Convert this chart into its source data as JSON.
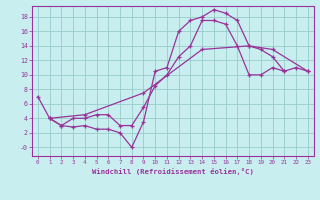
{
  "xlabel": "Windchill (Refroidissement éolien,°C)",
  "bg_color": "#c8eef0",
  "line_color": "#993399",
  "grid_color": "#99cccc",
  "xlim": [
    -0.5,
    23.5
  ],
  "ylim": [
    -1.2,
    19.5
  ],
  "xticks": [
    0,
    1,
    2,
    3,
    4,
    5,
    6,
    7,
    8,
    9,
    10,
    11,
    12,
    13,
    14,
    15,
    16,
    17,
    18,
    19,
    20,
    21,
    22,
    23
  ],
  "yticks": [
    0,
    2,
    4,
    6,
    8,
    10,
    12,
    14,
    16,
    18
  ],
  "ytick_labels": [
    "-0",
    "2",
    "4",
    "6",
    "8",
    "10",
    "12",
    "14",
    "16",
    "18"
  ],
  "line1_x": [
    0,
    1,
    2,
    3,
    4,
    5,
    6,
    7,
    8,
    9,
    10,
    11,
    12,
    13,
    14,
    15,
    16,
    17,
    18,
    19,
    20,
    21
  ],
  "line1_y": [
    7.0,
    4.0,
    3.0,
    2.8,
    3.0,
    2.5,
    2.5,
    2.0,
    0.0,
    3.5,
    10.5,
    11.0,
    16.0,
    17.5,
    18.0,
    19.0,
    18.5,
    17.5,
    14.0,
    13.5,
    12.5,
    10.5
  ],
  "line2_x": [
    1,
    2,
    3,
    4,
    5,
    6,
    7,
    8,
    9,
    10,
    11,
    12,
    13,
    14,
    15,
    16,
    17,
    18,
    19,
    20,
    21,
    22,
    23
  ],
  "line2_y": [
    4.0,
    3.0,
    4.0,
    4.0,
    4.5,
    4.5,
    3.0,
    3.0,
    5.5,
    8.5,
    10.0,
    12.5,
    14.0,
    17.5,
    17.5,
    17.0,
    14.0,
    10.0,
    10.0,
    11.0,
    10.5,
    11.0,
    10.5
  ],
  "line3_x": [
    1,
    4,
    9,
    14,
    18,
    20,
    23
  ],
  "line3_y": [
    4.0,
    4.5,
    7.5,
    13.5,
    14.0,
    13.5,
    10.5
  ]
}
